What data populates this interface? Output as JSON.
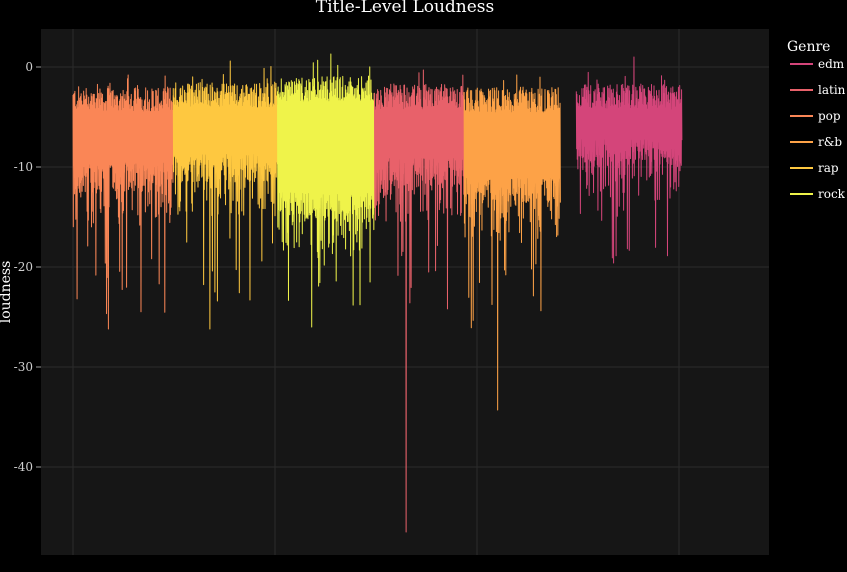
{
  "chart_data": {
    "type": "line",
    "title": "Title-Level Loudness",
    "xlabel": "",
    "ylabel": "loudness",
    "ylim": [
      -48.8,
      3.8
    ],
    "y_ticks": [
      0,
      -10,
      -20,
      -30,
      -40
    ],
    "y_tick_labels": [
      "0",
      "-10",
      "-20",
      "-30",
      "-40"
    ],
    "legend_title": "Genre",
    "legend_position": "right",
    "grid": true,
    "series": [
      {
        "name": "edm",
        "color": "#d4457a",
        "start": 0.758,
        "end": 0.917,
        "typical_top": -3.0,
        "typical_bottom": -8.5,
        "min": -19.6,
        "max": 1.0
      },
      {
        "name": "latin",
        "color": "#e8616a",
        "start": 0.454,
        "end": 0.589,
        "typical_top": -3.0,
        "typical_bottom": -10.5,
        "min": -46.5,
        "max": -0.3
      },
      {
        "name": "pop",
        "color": "#fa8656",
        "start": 0.0,
        "end": 0.151,
        "typical_top": -3.2,
        "typical_bottom": -11.0,
        "min": -26.2,
        "max": -0.8
      },
      {
        "name": "r&b",
        "color": "#fda247",
        "start": 0.589,
        "end": 0.734,
        "typical_top": -3.3,
        "typical_bottom": -12.5,
        "min": -34.3,
        "max": -0.8
      },
      {
        "name": "rap",
        "color": "#fec840",
        "start": 0.151,
        "end": 0.308,
        "typical_top": -2.8,
        "typical_bottom": -10.0,
        "min": -26.2,
        "max": 0.6
      },
      {
        "name": "rock",
        "color": "#eff34a",
        "start": 0.308,
        "end": 0.454,
        "typical_top": -2.2,
        "typical_bottom": -14.0,
        "min": -26.0,
        "max": 1.3
      }
    ]
  }
}
